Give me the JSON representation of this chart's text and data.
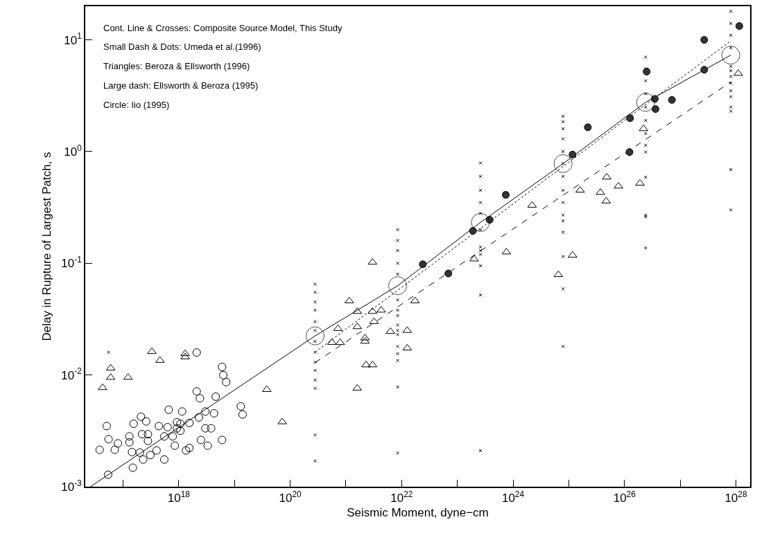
{
  "chart_data": {
    "type": "scatter",
    "xlabel": "Seismic Moment, dyne−cm",
    "ylabel": "Delay in Rupture of Largest Patch, s",
    "log": "xy",
    "xlim": [
      2.1e+16,
      1.8e+28
    ],
    "ylim": [
      0.001,
      20
    ],
    "xticks": [
      {
        "value": 1e+17,
        "label": null
      },
      {
        "value": 1e+18,
        "label": "10$^{18}$"
      },
      {
        "value": 1e+19,
        "label": null
      },
      {
        "value": 1e+20,
        "label": "10$^{20}$"
      },
      {
        "value": 1e+21,
        "label": null
      },
      {
        "value": 1e+22,
        "label": "10$^{22}$"
      },
      {
        "value": 1e+23,
        "label": null
      },
      {
        "value": 1e+24,
        "label": "10$^{24}$"
      },
      {
        "value": 1e+25,
        "label": null
      },
      {
        "value": 1e+26,
        "label": "10$^{26}$"
      },
      {
        "value": 1e+27,
        "label": null
      },
      {
        "value": 1e+28,
        "label": "10$^{28}$"
      }
    ],
    "yticks": [
      {
        "value": 0.001,
        "label": "10$^{-3}$"
      },
      {
        "value": 0.01,
        "label": "10$^{-2}$"
      },
      {
        "value": 0.1,
        "label": "10$^{-1}$"
      },
      {
        "value": 1,
        "label": "10$^{0}$"
      },
      {
        "value": 10,
        "label": "10$^{1}$"
      }
    ],
    "annotations": [
      "Cont. Line & Crosses: Composite Source Model, This Study",
      "Small Dash & Dots: Umeda et al.(1996)",
      "Triangles: Beroza & Ellsworth (1996)",
      "Large dash: Ellsworth & Beroza (1995)",
      "Circle: Iio (1995)"
    ],
    "series": [
      {
        "type": "line",
        "line_style": "solid",
        "color": "#000000",
        "x": [
          2.6e+16,
          2.8e+20,
          8.5e+21,
          2.6e+23,
          7.9e+24,
          2.4e+26,
          8.1e+27
        ],
        "values": [
          0.001,
          0.0224,
          0.063,
          0.232,
          0.78,
          2.76,
          7.3
        ]
      },
      {
        "type": "line",
        "line_style": "dotted",
        "color": "#000000",
        "x": [
          2.8e+20,
          8.1e+27
        ],
        "values": [
          0.016,
          9.8
        ]
      },
      {
        "type": "line",
        "line_style": "dashed",
        "color": "#000000",
        "x": [
          2.8e+20,
          8.1e+27
        ],
        "values": [
          0.0129,
          4.2
        ]
      },
      {
        "marker": "cross",
        "color": "#000000",
        "x": [
          5.5e+16,
          2.8e+20,
          2.8e+20,
          2.8e+20,
          2.8e+20,
          2.8e+20,
          2.8e+20,
          2.8e+20,
          2.8e+20,
          2.8e+20,
          2.8e+20,
          2.8e+20,
          2.8e+20,
          2.8e+20,
          2.8e+20,
          8.5e+21,
          8.5e+21,
          8.5e+21,
          8.5e+21,
          8.5e+21,
          8.5e+21,
          8.5e+21,
          8.5e+21,
          8.5e+21,
          8.5e+21,
          8.5e+21,
          8.5e+21,
          8.5e+21,
          8.5e+21,
          8.5e+21,
          8.5e+21,
          2.6e+23,
          2.6e+23,
          2.6e+23,
          2.6e+23,
          2.6e+23,
          2.6e+23,
          2.6e+23,
          2.6e+23,
          2.6e+23,
          2.6e+23,
          2.6e+23,
          2.6e+23,
          7.9e+24,
          7.9e+24,
          7.9e+24,
          7.9e+24,
          7.9e+24,
          7.9e+24,
          7.9e+24,
          7.9e+24,
          7.9e+24,
          7.9e+24,
          7.9e+24,
          7.9e+24,
          7.9e+24,
          7.9e+24,
          7.9e+24,
          2.4e+26,
          2.4e+26,
          2.4e+26,
          2.4e+26,
          2.4e+26,
          2.4e+26,
          2.4e+26,
          2.4e+26,
          2.4e+26,
          2.4e+26,
          2.4e+26,
          2.4e+26,
          2.4e+26,
          8.1e+27,
          8.1e+27,
          8.1e+27,
          8.1e+27,
          8.1e+27,
          8.1e+27,
          8.1e+27,
          8.1e+27,
          8.1e+27,
          8.1e+27,
          8.1e+27,
          8.1e+27,
          8.1e+27,
          8.1e+27
        ],
        "values": [
          0.016,
          0.065,
          0.055,
          0.045,
          0.038,
          0.03,
          0.025,
          0.02,
          0.016,
          0.013,
          0.011,
          0.009,
          0.0076,
          0.0029,
          0.0017,
          0.2,
          0.16,
          0.13,
          0.1,
          0.08,
          0.047,
          0.038,
          0.034,
          0.028,
          0.025,
          0.023,
          0.018,
          0.0155,
          0.0135,
          0.0078,
          0.002,
          0.79,
          0.6,
          0.45,
          0.35,
          0.28,
          0.2,
          0.14,
          0.13,
          0.12,
          0.095,
          0.052,
          0.0021,
          2.07,
          1.85,
          1.6,
          1.3,
          1.0,
          0.78,
          0.6,
          0.45,
          0.35,
          0.27,
          0.24,
          0.19,
          0.115,
          0.059,
          0.018,
          7.0,
          5.5,
          4.3,
          3.3,
          2.5,
          1.9,
          1.45,
          1.14,
          0.99,
          0.59,
          0.27,
          0.26,
          0.137,
          18,
          14,
          11,
          8.5,
          5.8,
          5.3,
          4.7,
          4.1,
          3.5,
          3.1,
          2.5,
          2.3,
          0.69,
          0.3
        ]
      },
      {
        "marker": "circle",
        "color": "#000000",
        "x": [
          2.1e+18,
          6e+18,
          6.3e+18,
          7.1e+18,
          2.1e+18,
          2.4e+18,
          4.6e+18,
          6.6e+17,
          1.15e+18,
          3e+18,
          4.3e+18,
          1.3e+19,
          1.4e+19,
          2.3e+18,
          1.55e+18,
          9.3e+17,
          9.3e+17,
          6.3e+17,
          4.4e+17,
          2.1e+17,
          1.55e+17,
          2.6e+17,
          5.1e+16,
          5.5e+16,
          8.1e+16,
          7.1e+16,
          3.8e+16,
          1.3e+17,
          1.3e+17,
          2.2e+17,
          2.8e+17,
          2.8e+17,
          1.45e+17,
          2e+17,
          3.1e+17,
          4e+17,
          2.3e+17,
          5.5e+17,
          1.5e+17,
          5.4e+16,
          5.5e+17,
          8.5e+17,
          1.35e+18,
          1.55e+18,
          2.5e+18,
          3.3e+18,
          3e+18,
          3.8e+18,
          6e+18,
          1.07e+18,
          1.07e+18,
          7.8e+17
        ],
        "values": [
          0.0159,
          0.0118,
          0.00996,
          0.00863,
          0.00713,
          0.00618,
          0.0064,
          0.00488,
          0.00471,
          0.00471,
          0.00454,
          0.00524,
          0.00443,
          0.00417,
          0.00372,
          0.00378,
          0.00333,
          0.00341,
          0.00349,
          0.00423,
          0.00366,
          0.00384,
          0.00349,
          0.00266,
          0.00244,
          0.00214,
          0.00214,
          0.00282,
          0.0025,
          0.00295,
          0.00295,
          0.00257,
          0.00204,
          0.00202,
          0.00192,
          0.00211,
          0.00175,
          0.00175,
          0.00148,
          0.00128,
          0.00282,
          0.00233,
          0.00211,
          0.00222,
          0.00262,
          0.00233,
          0.00333,
          0.00333,
          0.00262,
          0.00317,
          0.00366,
          0.00282
        ]
      },
      {
        "marker": "triangle",
        "color": "#000000",
        "x": [
          3.3e+17,
          4.6e+17,
          1.3e+18,
          1.3e+18,
          6e+16,
          6e+16,
          1.23e+17,
          4.3e+16,
          3.8e+19,
          7.2e+19,
          3e+21,
          1.15e+21,
          1.6e+21,
          3e+21,
          4.3e+21,
          7.2e+20,
          1.6e+21,
          3.2e+21,
          5.6e+20,
          7.9e+20,
          2.2e+21,
          2.2e+21,
          6.3e+21,
          1.26e+22,
          1.26e+22,
          1.74e+22,
          2.3e+21,
          3e+21,
          1.6e+21,
          2e+23,
          7.6e+23,
          2.2e+24,
          1.6e+25,
          4.8e+25,
          7.8e+25,
          3.7e+25,
          4.7e+25,
          1.9e+26,
          2.2e+26,
          1.1e+28,
          1.17e+25,
          6.5e+24
        ],
        "values": [
          0.0162,
          0.0135,
          0.0155,
          0.0145,
          0.0115,
          0.0095,
          0.0095,
          0.0077,
          0.0074,
          0.0038,
          0.102,
          0.046,
          0.037,
          0.037,
          0.038,
          0.026,
          0.027,
          0.03,
          0.0195,
          0.0195,
          0.0214,
          0.02,
          0.0245,
          0.025,
          0.0174,
          0.046,
          0.0123,
          0.0123,
          0.0076,
          0.109,
          0.126,
          0.33,
          0.45,
          0.59,
          0.49,
          0.43,
          0.36,
          0.52,
          1.6,
          5.0,
          0.118,
          0.079
        ]
      },
      {
        "marker": "circle",
        "color": "#333333",
        "x": [
          2.4e+22,
          6.9e+22,
          7.4e+23,
          3.8e+23,
          1.9e+23,
          2.2e+25,
          1.17e+25,
          1.26e+26,
          1.23e+26,
          2.5e+26,
          3.5e+26,
          3.6e+26,
          7.1e+26,
          2.7e+27,
          2.7e+27,
          1.15e+28
        ],
        "values": [
          0.098,
          0.081,
          0.41,
          0.245,
          0.195,
          1.65,
          0.94,
          1.99,
          0.99,
          5.2,
          2.96,
          2.4,
          2.9,
          5.4,
          10,
          13.3
        ]
      },
      {
        "type": "bubble",
        "marker": "circle",
        "color": "#000000",
        "x": [
          2.8e+20,
          8.5e+21,
          2.6e+23,
          7.9e+24,
          2.4e+26,
          8.1e+27
        ],
        "values": [
          0.0224,
          0.063,
          0.232,
          0.78,
          2.76,
          7.3
        ],
        "sizes": [
          1,
          1,
          1,
          1,
          1,
          1
        ]
      }
    ]
  }
}
